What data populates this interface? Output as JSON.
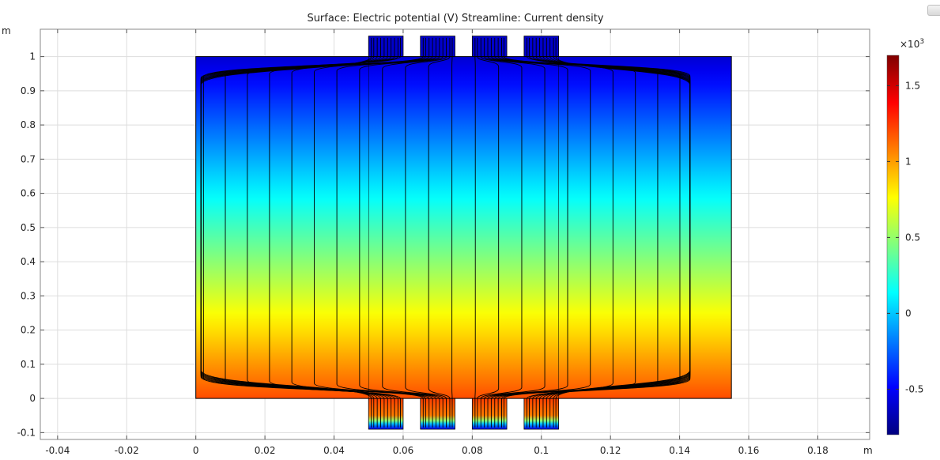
{
  "title": "Surface: Electric potential (V)  Streamline: Current density",
  "colorbar": {
    "multiplier": "×10",
    "exponent": "3",
    "range": [
      -0.8,
      1.7
    ],
    "ticks": [
      {
        "value": 1.5,
        "label": "1.5"
      },
      {
        "value": 1,
        "label": "1"
      },
      {
        "value": 0.5,
        "label": "0.5"
      },
      {
        "value": 0,
        "label": "0"
      },
      {
        "value": -0.5,
        "label": "-0.5"
      }
    ],
    "colormap": [
      "#00007f",
      "#0000ff",
      "#007fff",
      "#00ffff",
      "#7fff7f",
      "#ffff00",
      "#ff7f00",
      "#ff0000",
      "#7f0000"
    ]
  },
  "chart_data": {
    "type": "heatmap",
    "title": "Surface: Electric potential (V)  Streamline: Current density",
    "xlabel": "m",
    "ylabel": "m",
    "xlim": [
      -0.045,
      0.195
    ],
    "ylim": [
      -0.12,
      1.08
    ],
    "x_ticks": [
      -0.04,
      -0.02,
      0,
      0.02,
      0.04,
      0.06,
      0.08,
      0.1,
      0.12,
      0.14,
      0.16,
      0.18
    ],
    "x_tick_labels": [
      "-0.04",
      "-0.02",
      "0",
      "0.02",
      "0.04",
      "0.06",
      "0.08",
      "0.1",
      "0.12",
      "0.14",
      "0.16",
      "0.18"
    ],
    "y_ticks": [
      -0.1,
      0,
      0.1,
      0.2,
      0.3,
      0.4,
      0.5,
      0.6,
      0.7,
      0.8,
      0.9,
      1
    ],
    "y_tick_labels": [
      "-0.1",
      "0",
      "0.1",
      "0.2",
      "0.3",
      "0.4",
      "0.5",
      "0.6",
      "0.7",
      "0.8",
      "0.9",
      "1"
    ],
    "domain": {
      "x": [
        0,
        0.155
      ],
      "y": [
        0,
        1
      ]
    },
    "electrodes": [
      {
        "x": [
          0.05,
          0.06
        ]
      },
      {
        "x": [
          0.065,
          0.075
        ]
      },
      {
        "x": [
          0.08,
          0.09
        ]
      },
      {
        "x": [
          0.095,
          0.105
        ]
      }
    ],
    "electrode_y": {
      "top": [
        1,
        1.06
      ],
      "bottom": [
        -0.09,
        0
      ]
    },
    "potential_bottom_V": 1200,
    "potential_top_V": -600,
    "streamline_count": 40,
    "grid": true
  }
}
